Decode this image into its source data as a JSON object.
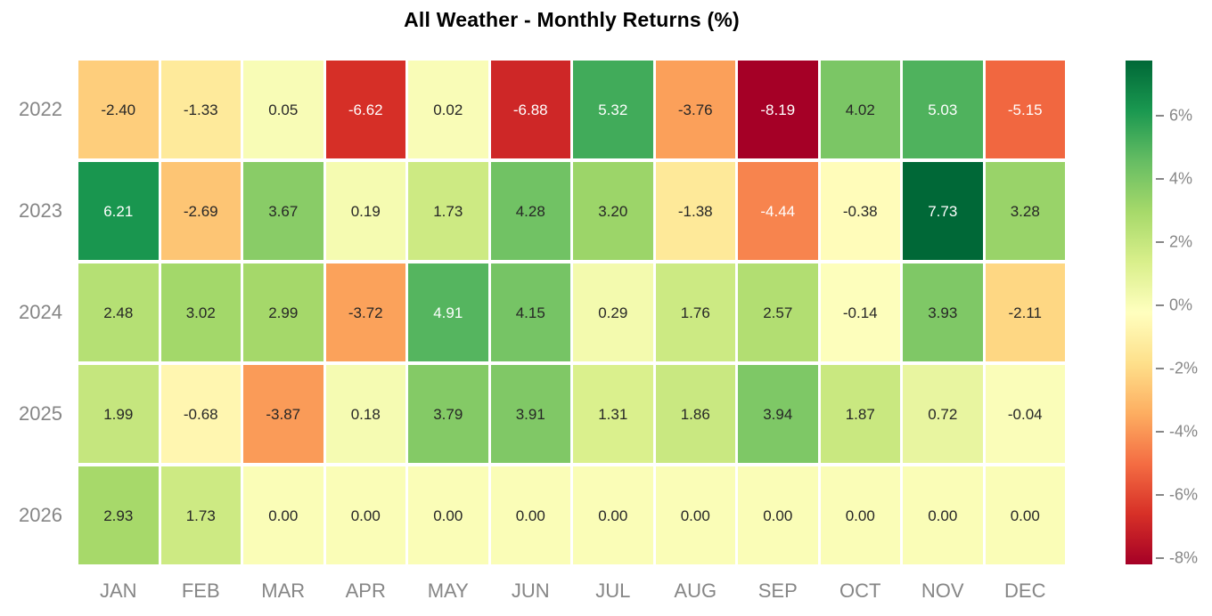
{
  "title": "All Weather - Monthly Returns (%)",
  "chart_data": {
    "type": "heatmap",
    "title": "All Weather - Monthly Returns (%)",
    "x_labels": [
      "JAN",
      "FEB",
      "MAR",
      "APR",
      "MAY",
      "JUN",
      "JUL",
      "AUG",
      "SEP",
      "OCT",
      "NOV",
      "DEC"
    ],
    "y_labels": [
      "2022",
      "2023",
      "2024",
      "2025",
      "2026"
    ],
    "values": [
      [
        -2.4,
        -1.33,
        0.05,
        -6.62,
        0.02,
        -6.88,
        5.32,
        -3.76,
        -8.19,
        4.02,
        5.03,
        -5.15
      ],
      [
        6.21,
        -2.69,
        3.67,
        0.19,
        1.73,
        4.28,
        3.2,
        -1.38,
        -4.44,
        -0.38,
        7.73,
        3.28
      ],
      [
        2.48,
        3.02,
        2.99,
        -3.72,
        4.91,
        4.15,
        0.29,
        1.76,
        2.57,
        -0.14,
        3.93,
        -2.11
      ],
      [
        1.99,
        -0.68,
        -3.87,
        0.18,
        3.79,
        3.91,
        1.31,
        1.86,
        3.94,
        1.87,
        0.72,
        -0.04
      ],
      [
        2.93,
        1.73,
        0.0,
        0.0,
        0.0,
        0.0,
        0.0,
        0.0,
        0.0,
        0.0,
        0.0,
        0.0
      ]
    ],
    "value_decimals": 2,
    "zmin": -8.19,
    "zmax": 7.73,
    "colorscale_name": "RdYlGn",
    "colorscale": [
      "#a50026",
      "#d73027",
      "#f46d43",
      "#fdae61",
      "#fee08b",
      "#ffffbf",
      "#d9ef8b",
      "#a6d96a",
      "#66bd63",
      "#1a9850",
      "#006837"
    ],
    "colorbar_ticks": [
      6,
      4,
      2,
      0,
      -2,
      -4,
      -6,
      -8
    ],
    "colorbar_tick_suffix": "%",
    "legend_position": "right",
    "grid": false
  },
  "colors": {
    "background": "#ffffff",
    "title_text": "#000000",
    "axis_label_gray": "#868686",
    "annotation_dark": "#262626",
    "annotation_light": "#ffffff"
  }
}
